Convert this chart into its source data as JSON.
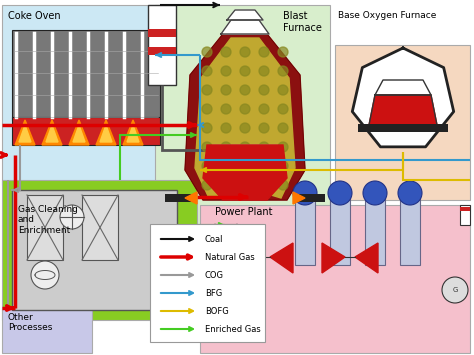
{
  "bg_color": "#ffffff",
  "coal_color": "#111111",
  "ng_color": "#dd0000",
  "cog_color": "#999999",
  "bfg_color": "#3399cc",
  "bofg_color": "#ddbb00",
  "eg_color": "#44cc22",
  "legend_items": [
    {
      "label": "Coal",
      "color": "#111111",
      "lw": 1.5
    },
    {
      "label": "Natural Gas",
      "color": "#dd0000",
      "lw": 2.5
    },
    {
      "label": "COG",
      "color": "#999999",
      "lw": 1.5
    },
    {
      "label": "BFG",
      "color": "#3399cc",
      "lw": 1.5
    },
    {
      "label": "BOFG",
      "color": "#ddbb00",
      "lw": 1.5
    },
    {
      "label": "Enriched Gas",
      "color": "#44cc22",
      "lw": 1.5
    }
  ]
}
